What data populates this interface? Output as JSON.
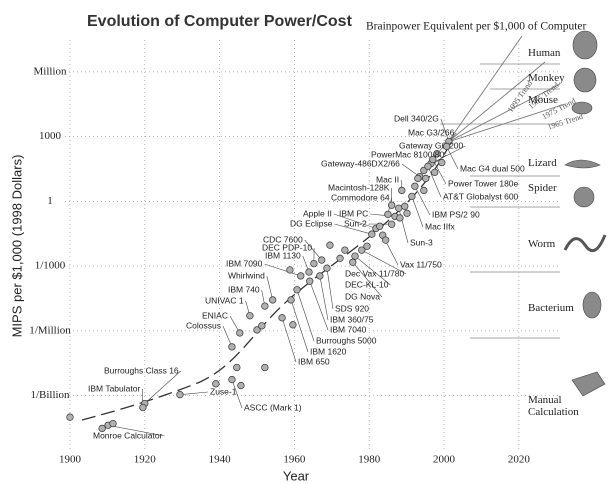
{
  "chart_data": {
    "type": "scatter",
    "title": "Evolution of Computer Power/Cost",
    "x_label": "Year",
    "y_label": "MIPS per $1,000 (1998 Dollars)",
    "xlim": [
      1896,
      2031
    ],
    "xticks": [
      1900,
      1920,
      1940,
      1960,
      1980,
      2000,
      2020
    ],
    "ylim": [
      3e-12,
      30000000.0
    ],
    "ylog": true,
    "yticks": [
      {
        "value": 1000000,
        "label": "Million"
      },
      1000,
      1,
      {
        "value": 0.001,
        "label": "1/1000"
      },
      {
        "value": 1e-06,
        "label": "1/Million"
      },
      {
        "value": 1e-09,
        "label": "1/Billion"
      }
    ],
    "grid": true,
    "color": "#b0b0b0",
    "x": [
      2001.3,
      1998.1,
      1996.5,
      1994.6,
      1993.5,
      2000.7,
      1997,
      1995.7,
      1988.7,
      1986,
      1985,
      1992.2,
      1991.4,
      1981.8,
      1980.7,
      1986.9,
      1986,
      1987.9,
      1983.6,
      1978,
      1976.2,
      1975.6,
      1968.7,
      1967.3,
      1965.2,
      1963.9,
      1966.8,
      1961.7,
      1964.1,
      1960.7,
      1954.2,
      1952.1,
      1959.1,
      1956.7,
      1948.1,
      1945.4,
      1943.3,
      1920,
      1919.5,
      1929.4,
      1943.3,
      1910.2,
      1900,
      1908.6,
      1911.5,
      1939,
      1944.6,
      1945.7,
      1952.1,
      1950,
      1951.3,
      1959.6,
      1958.8,
      1969.5,
      1972.2,
      1973.5,
      1979.4,
      1982.8,
      1984.4,
      1988.2,
      1989.5,
      1990.1,
      1993,
      1994.6,
      1995.1,
      1997.5,
      1999.4
    ],
    "values": [
      600,
      160,
      56,
      27,
      14,
      350,
      87,
      42,
      3.2,
      0.66,
      0.25,
      5,
      1.7,
      0.056,
      0.03,
      0.2,
      0.087,
      0.48,
      0.027,
      0.0055,
      0.0029,
      0.0015,
      0.0008,
      0.0019,
      0.0013,
      0.00053,
      0.00035,
      0.00035,
      0.0002,
      8e-05,
      2.7e-05,
      1.4e-05,
      2.7e-05,
      4e-06,
      5e-06,
      8e-07,
      1.8e-07,
      4.3e-10,
      2.8e-10,
      1.1e-09,
      5.5e-09,
      4.2e-11,
      1e-10,
      3e-11,
      5e-11,
      3.5e-09,
      2e-08,
      2.9e-09,
      2e-08,
      1.1e-06,
      1.7e-06,
      1.9e-06,
      0.00066,
      0.0093,
      0.0023,
      0.0055,
      0.0083,
      0.07,
      0.016,
      0.17,
      0.59,
      0.28,
      11.5,
      3.2,
      11.5,
      22,
      63
    ],
    "labels": [
      "Dell 340/2G",
      "Mac G3/266",
      "Gateway G6-200",
      "PowerMac 8100/80",
      "Gateway-486DX2/66",
      "Mac G4 dual 500",
      "Power Tower 180e",
      "AT&T Globalyst 600",
      "Mac II",
      "Macintosh-128K",
      "Commodore 64",
      "IBM PS/2 90",
      "Mac IIfx",
      "Apple II",
      "DG Eclipse",
      "IBM PC",
      "Sun-2",
      "Sun-3",
      "Vax 11/750",
      "Dec Vax 11/780",
      "DEC-KL-10",
      "DG Nova",
      "SDS 920",
      "CDC 7600",
      "DEC PDP-10",
      "IBM 1130",
      "IBM 360/75",
      "IBM 7090",
      "IBM 7040",
      "Burroughs 5000",
      "Whirlwind",
      "IBM 740",
      "IBM 1620",
      "IBM 650",
      "UNIVAC 1",
      "ENIAC",
      "Colossus",
      "Burroughs Class 16",
      "IBM Tabulator",
      "Zuse-1",
      "ASCC (Mark 1)",
      "Monroe Calculator",
      null,
      null,
      null,
      null,
      null,
      null,
      null,
      null,
      null,
      null,
      null,
      null,
      null,
      null,
      null,
      null,
      null,
      null,
      null,
      null,
      null,
      null,
      null,
      null,
      null
    ],
    "trend_labels": [
      "1995 Trend",
      "1985 Trend",
      "1975 Trend",
      "1965 Trend"
    ],
    "brainpower": {
      "title": "Brainpower Equivalent per $1,000 of Computer",
      "levels": [
        "Human",
        "Monkey",
        "Mouse",
        "Lizard",
        "Spider",
        "Worm",
        "Bacterium",
        "Manual Calculation"
      ]
    }
  }
}
